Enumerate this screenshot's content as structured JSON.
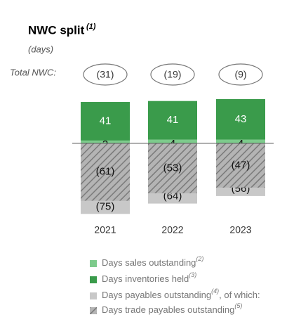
{
  "chart_data": {
    "type": "bar",
    "title": "NWC split",
    "title_note": "(1)",
    "subtitle": "(days)",
    "categories": [
      "2021",
      "2022",
      "2023"
    ],
    "totals": {
      "label": "Total NWC:",
      "values": [
        -31,
        -19,
        -9
      ],
      "value_labels": [
        "(31)",
        "(19)",
        "(9)"
      ]
    },
    "series": [
      {
        "name": "Days sales outstanding",
        "note": "(2)",
        "color": "#7dcb8c",
        "values": [
          3,
          4,
          4
        ]
      },
      {
        "name": "Days inventories held",
        "note": "(3)",
        "color": "#3a9b4b",
        "values": [
          41,
          41,
          43
        ]
      },
      {
        "name": "Days payables outstanding",
        "note": "(4)",
        "suffix": ", of which:",
        "color": "#c8c8c8",
        "values": [
          -75,
          -64,
          -56
        ],
        "value_labels": [
          "(75)",
          "(64)",
          "(56)"
        ]
      },
      {
        "name": "Days trade payables outstanding",
        "note": "(5)",
        "color": "#a8a8a8",
        "hatched": true,
        "values": [
          -61,
          -53,
          -47
        ],
        "value_labels": [
          "(61)",
          "(53)",
          "(47)"
        ]
      }
    ],
    "ylim": [
      -80,
      50
    ]
  }
}
